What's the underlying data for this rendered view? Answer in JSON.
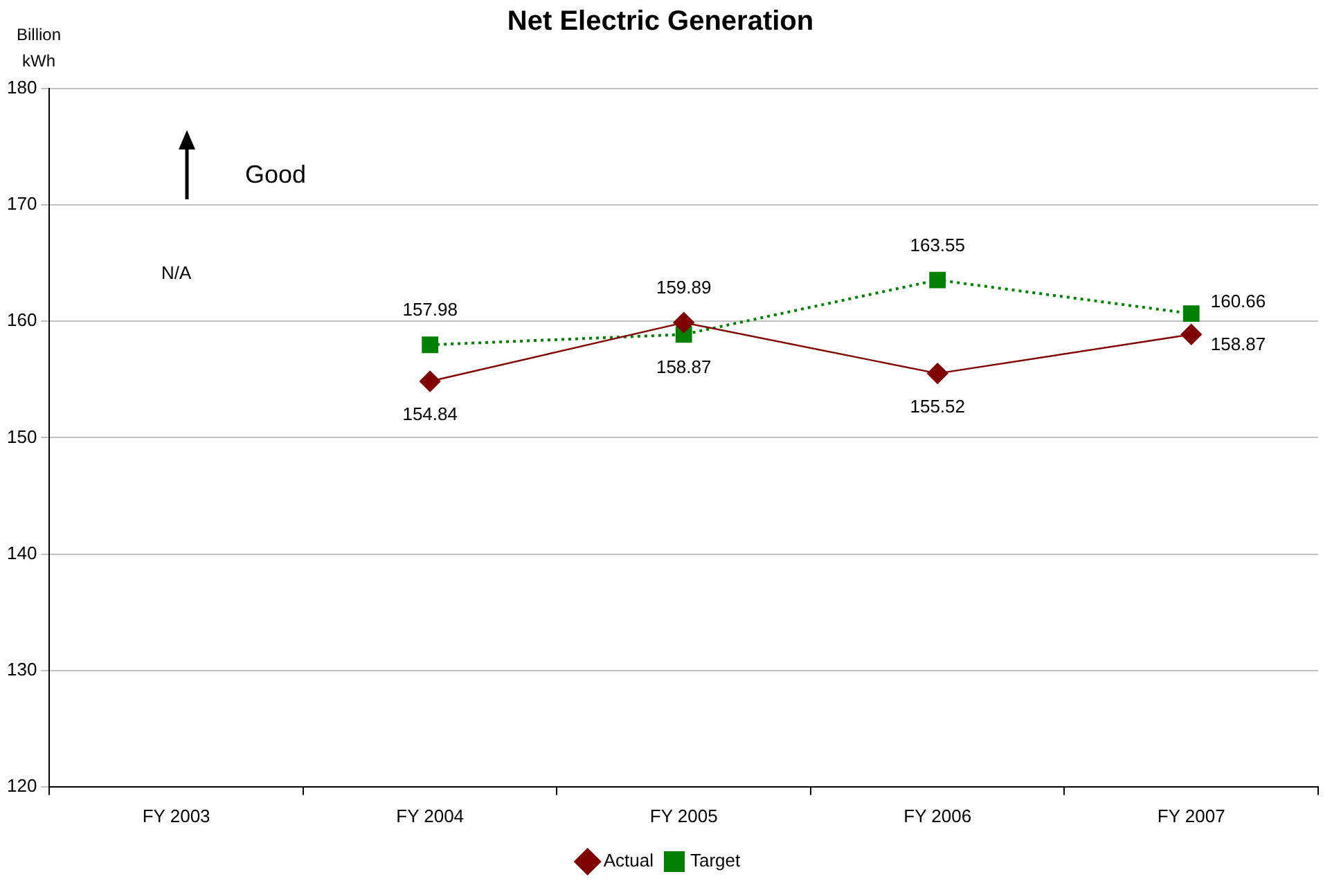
{
  "chart_data": {
    "type": "line",
    "title": "Net Electric Generation",
    "ylabel": "Billion kWh",
    "categories": [
      "FY 2003",
      "FY 2004",
      "FY 2005",
      "FY 2006",
      "FY 2007"
    ],
    "series": [
      {
        "name": "Actual",
        "color": "#800000",
        "values": [
          null,
          154.84,
          159.89,
          155.52,
          158.87
        ],
        "marker": "diamond",
        "line_style": "solid"
      },
      {
        "name": "Target",
        "color": "#008000",
        "values": [
          null,
          157.98,
          158.87,
          163.55,
          160.66
        ],
        "marker": "square",
        "line_style": "dotted"
      }
    ],
    "ylim": [
      120,
      180
    ],
    "yticks": [
      120,
      130,
      140,
      150,
      160,
      170,
      180
    ],
    "grid": "y",
    "legend": "bottom",
    "data_labels": true,
    "annotations": [
      "Good",
      "N/A"
    ]
  }
}
